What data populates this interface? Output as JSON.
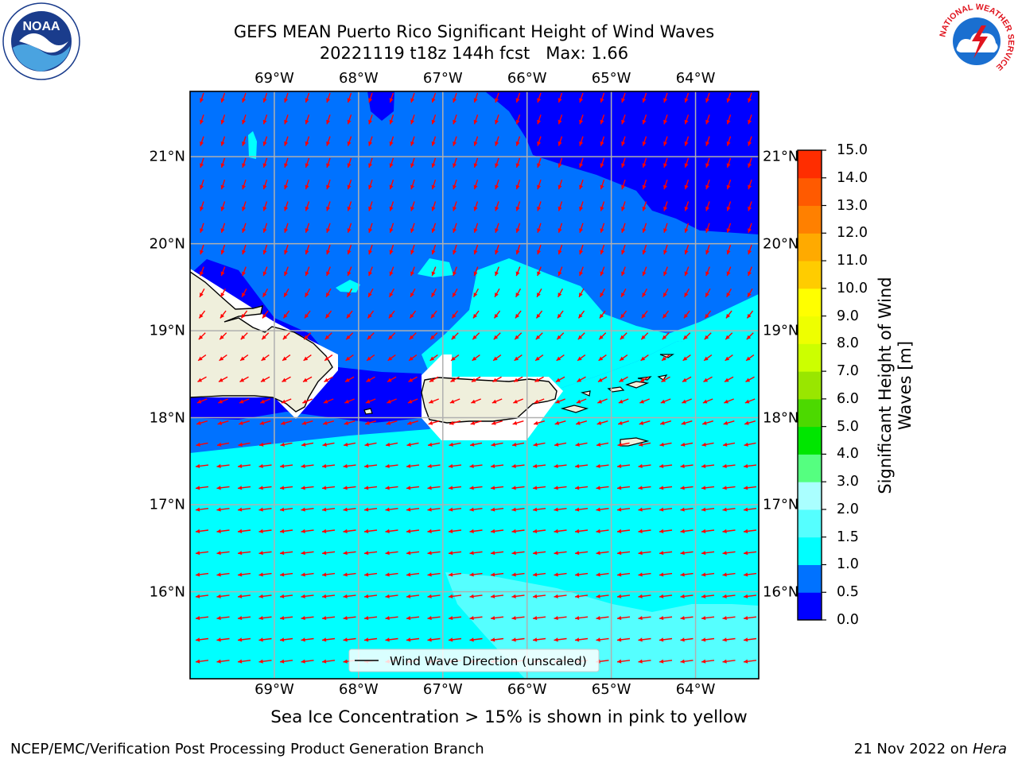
{
  "title": {
    "line1": "GEFS MEAN Puerto Rico Significant Height of Wind Waves",
    "line2": "20221119 t18z 144h fcst   Max: 1.66"
  },
  "axes": {
    "lon_labels": [
      "69°W",
      "68°W",
      "67°W",
      "66°W",
      "65°W",
      "64°W"
    ],
    "lat_labels": [
      "21°N",
      "20°N",
      "19°N",
      "18°N",
      "17°N",
      "16°N"
    ],
    "lon_values": [
      -69,
      -68,
      -67,
      -66,
      -65,
      -64
    ],
    "lat_values": [
      21,
      20,
      19,
      18,
      17,
      16
    ],
    "lon_range": [
      -70.0,
      -63.25
    ],
    "lat_range": [
      15.0,
      21.75
    ]
  },
  "legend": {
    "label": "Wind Wave Direction (unscaled)"
  },
  "colorbar": {
    "title": "Significant Height of Wind Waves [m]",
    "ticks": [
      "15.0",
      "14.0",
      "13.0",
      "12.0",
      "11.0",
      "10.0",
      "9.0",
      "8.0",
      "7.0",
      "6.0",
      "5.0",
      "4.0",
      "3.0",
      "2.0",
      "1.5",
      "1.0",
      "0.5",
      "0.0"
    ],
    "levels": [
      0,
      0.5,
      1,
      1.5,
      2,
      3,
      4,
      5,
      6,
      7,
      8,
      9,
      10,
      11,
      12,
      13,
      14,
      15
    ],
    "colors": [
      "#0000ff",
      "#0072ff",
      "#00ffff",
      "#55ffff",
      "#aaffff",
      "#55ff80",
      "#00e600",
      "#4cd900",
      "#99e600",
      "#ccff00",
      "#eeff00",
      "#ffff00",
      "#ffcc00",
      "#ffaa00",
      "#ff8000",
      "#ff5a00",
      "#ff2d00"
    ]
  },
  "map_colors": {
    "band_0_0.5": "#0000ff",
    "band_0.5_1.0": "#0072ff",
    "band_1.0_1.5": "#00ffff",
    "band_1.5_2.0": "#55ffff",
    "land": "#efefdc",
    "arrow": "#ff0000",
    "grid": "#b0b0b0"
  },
  "wind_direction": "from east-northeast",
  "max_value": 1.66,
  "caption": "Sea Ice Concentration > 15% is shown in pink to yellow",
  "footer": {
    "left": "NCEP/EMC/Verification Post Processing Product Generation Branch",
    "date": "21 Nov 2022 on ",
    "machine": "Hera"
  },
  "logos": {
    "noaa": {
      "label": "NOAA"
    },
    "nws": {
      "label": "NATIONAL WEATHER SERVICE"
    }
  }
}
